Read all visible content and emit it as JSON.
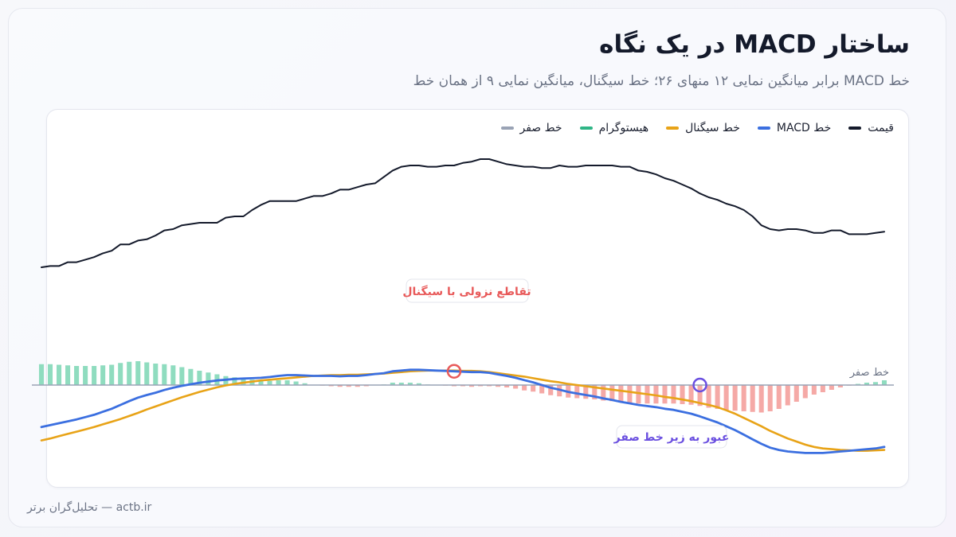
{
  "header": {
    "title": "ساختار MACD در یک نگاه",
    "subtitle": "خط MACD برابر میانگین نمایی ۱۲ منهای ۲۶؛ خط سیگنال، میانگین نمایی ۹ از همان خط"
  },
  "legend": [
    {
      "label": "قیمت",
      "color": "#141a2b"
    },
    {
      "label": "خط MACD",
      "color": "#3b6fe0"
    },
    {
      "label": "خط سیگنال",
      "color": "#e8a317"
    },
    {
      "label": "هیستوگرام",
      "color": "#2fb586"
    },
    {
      "label": "خط صفر",
      "color": "#9aa3b5"
    }
  ],
  "annotations": {
    "bearish_cross": "تقاطع نزولی با سیگنال",
    "zero_cross": "عبور به زیر خط صفر",
    "zero_line_label": "خط صفر"
  },
  "footer": "actb.ir — تحلیل‌گران برتر",
  "colors": {
    "price": "#141a2b",
    "macd": "#3b6fe0",
    "signal": "#e8a317",
    "hist_pos": "#8fdcbf",
    "hist_neg": "#f5a9a6",
    "zero": "#9aa3b5",
    "bearish": "#e85a5a",
    "zero_cross": "#6a4fe0"
  },
  "chart_data": {
    "type": "line",
    "x": [
      0,
      1,
      2,
      3,
      4,
      5,
      6,
      7,
      8,
      9,
      10,
      11,
      12,
      13,
      14,
      15,
      16,
      17,
      18,
      19,
      20,
      21,
      22,
      23,
      24,
      25,
      26,
      27,
      28,
      29,
      30,
      31,
      32,
      33,
      34,
      35,
      36,
      37,
      38,
      39,
      40,
      41,
      42,
      43,
      44,
      45,
      46,
      47,
      48,
      49,
      50,
      51,
      52,
      53,
      54,
      55,
      56,
      57,
      58,
      59,
      60,
      61,
      62,
      63,
      64,
      65,
      66,
      67,
      68,
      69,
      70,
      71,
      72,
      73,
      74,
      75,
      76,
      77,
      78,
      79,
      80,
      81,
      82,
      83,
      84,
      85,
      86,
      87,
      88,
      89,
      90,
      91,
      92,
      93,
      94,
      95,
      96
    ],
    "series": [
      {
        "name": "قیمت",
        "values": [
          20,
          21,
          21,
          24,
          24,
          26,
          28,
          31,
          33,
          38,
          38,
          41,
          42,
          45,
          49,
          50,
          53,
          54,
          55,
          55,
          55,
          59,
          60,
          60,
          65,
          69,
          72,
          72,
          72,
          72,
          74,
          76,
          76,
          78,
          81,
          81,
          83,
          85,
          86,
          91,
          96,
          99,
          100,
          100,
          99,
          99,
          100,
          100,
          102,
          103,
          105,
          105,
          103,
          101,
          100,
          99,
          99,
          98,
          98,
          100,
          99,
          99,
          100,
          100,
          100,
          100,
          99,
          99,
          96,
          95,
          93,
          90,
          88,
          85,
          82,
          78,
          75,
          73,
          70,
          68,
          65,
          60,
          53,
          50,
          49,
          50,
          50,
          49,
          47,
          47,
          49,
          49,
          46,
          46,
          46,
          47,
          48
        ]
      },
      {
        "name": "خط MACD",
        "values": [
          -1.1,
          -1.05,
          -1.0,
          -0.95,
          -0.9,
          -0.84,
          -0.78,
          -0.7,
          -0.62,
          -0.52,
          -0.42,
          -0.33,
          -0.26,
          -0.2,
          -0.13,
          -0.07,
          -0.02,
          0.02,
          0.06,
          0.09,
          0.12,
          0.14,
          0.16,
          0.17,
          0.18,
          0.19,
          0.21,
          0.24,
          0.26,
          0.26,
          0.25,
          0.24,
          0.24,
          0.24,
          0.23,
          0.24,
          0.24,
          0.26,
          0.29,
          0.31,
          0.36,
          0.38,
          0.4,
          0.4,
          0.39,
          0.38,
          0.37,
          0.36,
          0.35,
          0.34,
          0.34,
          0.32,
          0.28,
          0.24,
          0.19,
          0.13,
          0.07,
          0.0,
          -0.07,
          -0.12,
          -0.18,
          -0.22,
          -0.26,
          -0.3,
          -0.35,
          -0.39,
          -0.44,
          -0.48,
          -0.52,
          -0.55,
          -0.58,
          -0.62,
          -0.65,
          -0.7,
          -0.75,
          -0.82,
          -0.9,
          -0.98,
          -1.08,
          -1.18,
          -1.3,
          -1.42,
          -1.54,
          -1.64,
          -1.7,
          -1.74,
          -1.76,
          -1.78,
          -1.78,
          -1.78,
          -1.76,
          -1.74,
          -1.72,
          -1.7,
          -1.68,
          -1.66,
          -1.62
        ]
      },
      {
        "name": "خط سیگنال",
        "values": [
          -1.45,
          -1.4,
          -1.34,
          -1.28,
          -1.22,
          -1.16,
          -1.1,
          -1.03,
          -0.96,
          -0.89,
          -0.81,
          -0.73,
          -0.64,
          -0.56,
          -0.48,
          -0.4,
          -0.32,
          -0.25,
          -0.18,
          -0.12,
          -0.06,
          -0.01,
          0.03,
          0.06,
          0.09,
          0.12,
          0.14,
          0.16,
          0.18,
          0.2,
          0.22,
          0.24,
          0.25,
          0.26,
          0.26,
          0.27,
          0.27,
          0.28,
          0.29,
          0.3,
          0.32,
          0.34,
          0.36,
          0.37,
          0.38,
          0.38,
          0.38,
          0.38,
          0.37,
          0.37,
          0.36,
          0.34,
          0.31,
          0.28,
          0.25,
          0.22,
          0.18,
          0.14,
          0.1,
          0.07,
          0.03,
          0.0,
          -0.03,
          -0.06,
          -0.09,
          -0.12,
          -0.15,
          -0.18,
          -0.21,
          -0.24,
          -0.27,
          -0.31,
          -0.34,
          -0.38,
          -0.42,
          -0.47,
          -0.52,
          -0.58,
          -0.66,
          -0.75,
          -0.86,
          -0.97,
          -1.08,
          -1.2,
          -1.3,
          -1.4,
          -1.48,
          -1.56,
          -1.62,
          -1.66,
          -1.68,
          -1.7,
          -1.71,
          -1.72,
          -1.72,
          -1.71,
          -1.7
        ]
      },
      {
        "name": "هیستوگرام",
        "values": [
          0.35,
          0.35,
          0.34,
          0.33,
          0.32,
          0.32,
          0.32,
          0.33,
          0.34,
          0.37,
          0.39,
          0.4,
          0.38,
          0.36,
          0.35,
          0.33,
          0.3,
          0.27,
          0.24,
          0.21,
          0.18,
          0.15,
          0.13,
          0.11,
          0.09,
          0.07,
          0.07,
          0.08,
          0.08,
          0.06,
          0.03,
          0.0,
          -0.01,
          -0.02,
          -0.03,
          -0.03,
          -0.03,
          -0.02,
          0.0,
          0.01,
          0.04,
          0.04,
          0.04,
          0.03,
          0.01,
          0.0,
          -0.01,
          -0.02,
          -0.02,
          -0.03,
          -0.02,
          -0.02,
          -0.03,
          -0.04,
          -0.06,
          -0.09,
          -0.11,
          -0.14,
          -0.17,
          -0.19,
          -0.21,
          -0.22,
          -0.23,
          -0.24,
          -0.26,
          -0.27,
          -0.29,
          -0.3,
          -0.31,
          -0.31,
          -0.31,
          -0.31,
          -0.31,
          -0.32,
          -0.33,
          -0.35,
          -0.38,
          -0.4,
          -0.42,
          -0.43,
          -0.44,
          -0.45,
          -0.46,
          -0.44,
          -0.4,
          -0.34,
          -0.28,
          -0.22,
          -0.16,
          -0.12,
          -0.08,
          -0.04,
          -0.01,
          0.02,
          0.04,
          0.05,
          0.08
        ]
      }
    ],
    "zero_line": 0,
    "legend_position": "top-right",
    "grid": false
  }
}
